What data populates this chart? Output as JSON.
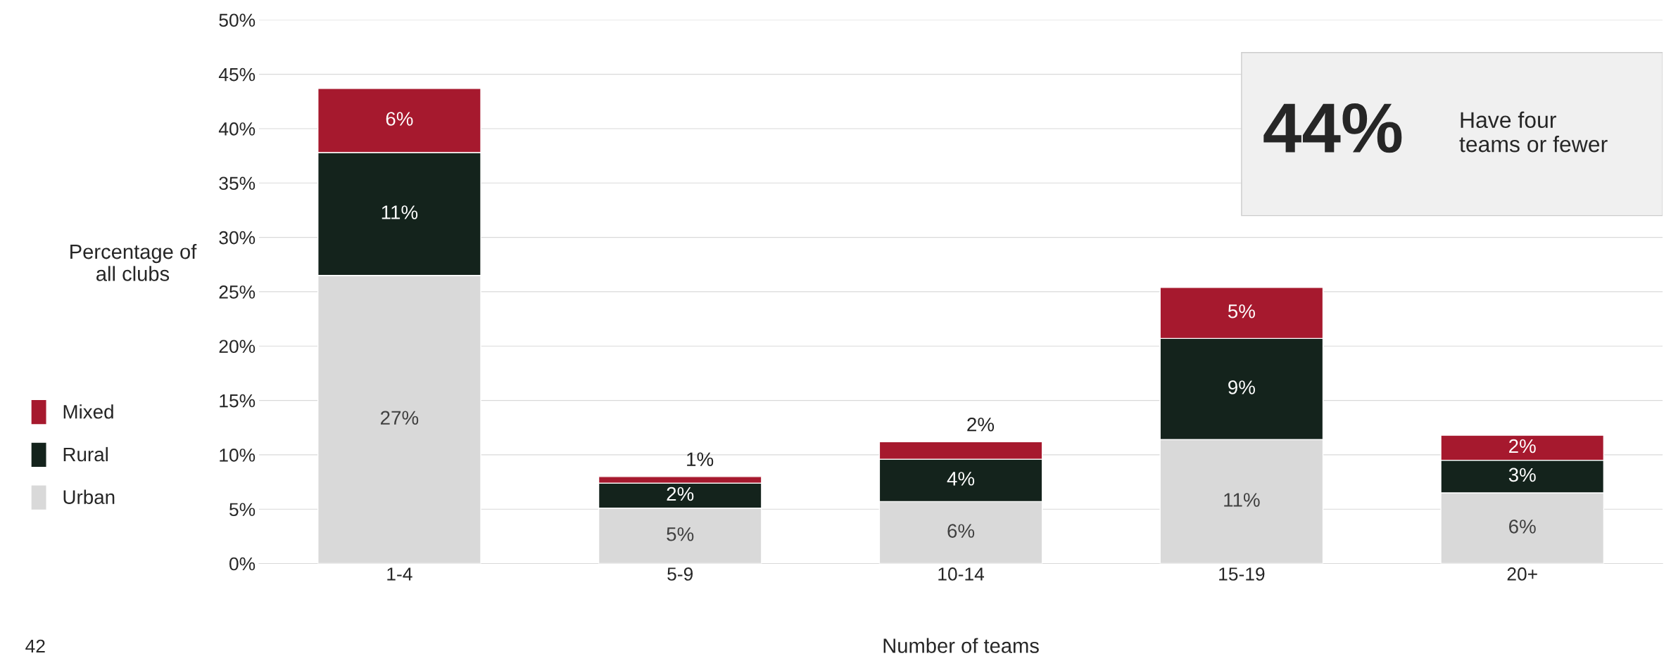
{
  "chart_data": {
    "type": "bar",
    "stacked": true,
    "categories": [
      "1-4",
      "5-9",
      "10-14",
      "15-19",
      "20+"
    ],
    "series": [
      {
        "name": "Urban",
        "color": "#d9d9d9",
        "values": [
          26.5,
          5.1,
          5.7,
          11.4,
          6.5
        ],
        "value_labels": [
          "27%",
          "5%",
          "6%",
          "11%",
          "6%"
        ]
      },
      {
        "name": "Rural",
        "color": "#14231c",
        "values": [
          11.3,
          2.3,
          3.9,
          9.3,
          3.0
        ],
        "value_labels": [
          "11%",
          "2%",
          "4%",
          "9%",
          "3%"
        ]
      },
      {
        "name": "Mixed",
        "color": "#a6192e",
        "values": [
          5.9,
          0.6,
          1.6,
          4.7,
          2.3
        ],
        "value_labels": [
          "6%",
          "1%",
          "2%",
          "5%",
          "2%"
        ]
      }
    ],
    "xlabel": "Number of teams",
    "ylabel": "Percentage of\nall clubs",
    "ylim": [
      0,
      50
    ],
    "yticks": [
      {
        "value": 0,
        "label": "0%"
      },
      {
        "value": 5,
        "label": "5%"
      },
      {
        "value": 10,
        "label": "10%"
      },
      {
        "value": 15,
        "label": "15%"
      },
      {
        "value": 20,
        "label": "20%"
      },
      {
        "value": 25,
        "label": "25%"
      },
      {
        "value": 30,
        "label": "30%"
      },
      {
        "value": 35,
        "label": "35%"
      },
      {
        "value": 40,
        "label": "40%"
      },
      {
        "value": 45,
        "label": "45%"
      },
      {
        "value": 50,
        "label": "50%"
      }
    ],
    "grid": "y",
    "legend": "left",
    "annotations": [
      "44%",
      "Have four\nteams or fewer",
      "42"
    ]
  }
}
